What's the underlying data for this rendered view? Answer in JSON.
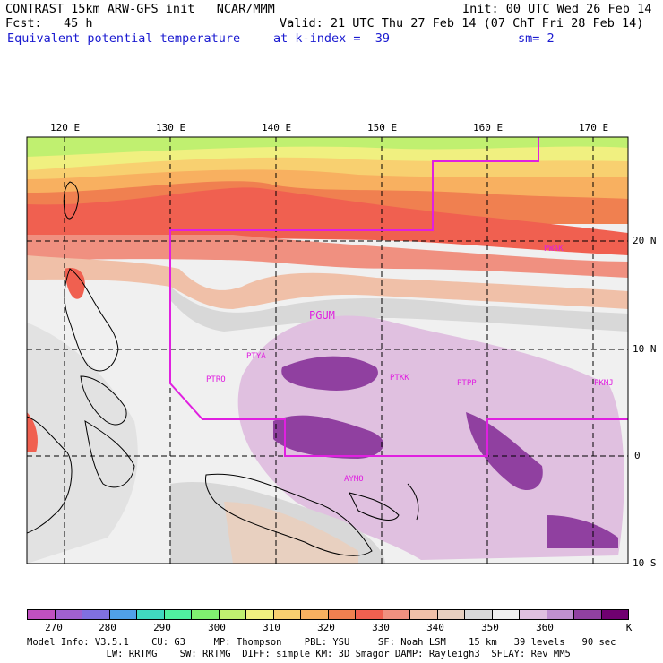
{
  "header": {
    "line1_left": "CONTRAST 15km ARW-GFS init   NCAR/MMM",
    "line1_right": "Init: 00 UTC Wed 26 Feb 14",
    "line2_left": "Fcst:   45 h",
    "line2_right": "Valid: 21 UTC Thu 27 Feb 14 (07 ChT Fri 28 Feb 14)",
    "field": "Equivalent potential temperature",
    "level": "at k-index =  39",
    "smoothing": "sm= 2"
  },
  "map": {
    "lon_labels": [
      "120 E",
      "130 E",
      "140 E",
      "150 E",
      "160 E",
      "170 E"
    ],
    "lat_labels": [
      "20 N",
      "10 N",
      "0",
      "10 S"
    ],
    "stations": [
      "PWAK",
      "PGUM",
      "PTYA",
      "PTRO",
      "PTKK",
      "PTPP",
      "PKMJ",
      "AYMO"
    ],
    "boundary_color": "#e020e0"
  },
  "colorbar": {
    "colors": [
      "#c050c0",
      "#a060d0",
      "#8070e0",
      "#50a0e8",
      "#40d8c0",
      "#50f0a0",
      "#80f070",
      "#c0f070",
      "#f0f080",
      "#f8d070",
      "#f8b060",
      "#f08050",
      "#f06050",
      "#f09080",
      "#f0c0a8",
      "#e8d0c0",
      "#d8d8d8",
      "#f0f0f0",
      "#e0c0e0",
      "#c090d0",
      "#9040a0",
      "#700070"
    ],
    "labels": [
      "270",
      "280",
      "290",
      "300",
      "310",
      "320",
      "330",
      "340",
      "350",
      "360",
      "K"
    ]
  },
  "footer": {
    "line1": "Model Info: V3.5.1    CU: G3     MP: Thompson    PBL: YSU     SF: Noah LSM    15 km   39 levels   90 sec",
    "line2": "              LW: RRTMG    SW: RRTMG  DIFF: simple KM: 3D Smagor DAMP: Rayleigh3  SFLAY: Rev MM5"
  }
}
